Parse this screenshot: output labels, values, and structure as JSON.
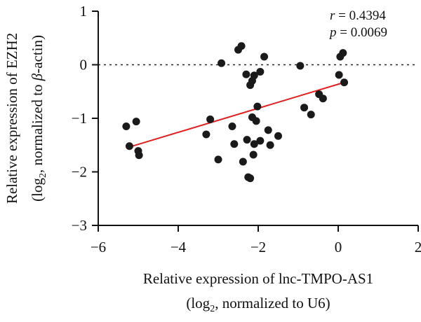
{
  "chart_data": {
    "type": "scatter",
    "title": "",
    "xlabel_line1": "Relative expression of lnc-TMPO-AS1",
    "xlabel_line2_pre": "(log",
    "xlabel_line2_sub": "2",
    "xlabel_line2_post": ", normalized to U6)",
    "ylabel_line1": "Relative expression of EZH2",
    "ylabel_line2_pre": "(log",
    "ylabel_line2_sub": "2",
    "ylabel_line2_post": ", normalized to ",
    "ylabel_line2_greek": "β",
    "ylabel_line2_end": "-actin)",
    "xlim": [
      -6,
      2
    ],
    "ylim": [
      -3,
      1
    ],
    "xticks": [
      -6,
      -4,
      -2,
      0,
      2
    ],
    "yticks": [
      -3,
      -2,
      -1,
      0,
      1
    ],
    "xtick_labels": [
      "−6",
      "−4",
      "−2",
      "0",
      "2"
    ],
    "ytick_labels": [
      "−3",
      "−2",
      "−1",
      "0",
      "1"
    ],
    "reference_line": {
      "y": 0,
      "style": "dotted"
    },
    "fit_line": {
      "x": [
        -5.15,
        0.15
      ],
      "y": [
        -1.52,
        -0.33
      ],
      "color": "#e02020"
    },
    "stats": {
      "r_label": "r",
      "r_value": " = 0.4394",
      "p_label": "p",
      "p_value": " = 0.0069"
    },
    "points": [
      {
        "x": -5.3,
        "y": -1.15
      },
      {
        "x": -5.22,
        "y": -1.52
      },
      {
        "x": -5.05,
        "y": -1.06
      },
      {
        "x": -5.0,
        "y": -1.61
      },
      {
        "x": -4.98,
        "y": -1.69
      },
      {
        "x": -3.3,
        "y": -1.3
      },
      {
        "x": -3.2,
        "y": -1.02
      },
      {
        "x": -3.0,
        "y": -1.77
      },
      {
        "x": -2.92,
        "y": 0.03
      },
      {
        "x": -2.65,
        "y": -1.15
      },
      {
        "x": -2.6,
        "y": -1.48
      },
      {
        "x": -2.5,
        "y": 0.28
      },
      {
        "x": -2.42,
        "y": 0.35
      },
      {
        "x": -2.38,
        "y": -1.81
      },
      {
        "x": -2.3,
        "y": -0.18
      },
      {
        "x": -2.28,
        "y": -1.4
      },
      {
        "x": -2.25,
        "y": -2.1
      },
      {
        "x": -2.2,
        "y": -2.12
      },
      {
        "x": -2.2,
        "y": -0.38
      },
      {
        "x": -2.15,
        "y": -0.3
      },
      {
        "x": -2.15,
        "y": -0.98
      },
      {
        "x": -2.12,
        "y": -1.68
      },
      {
        "x": -2.1,
        "y": -0.2
      },
      {
        "x": -2.1,
        "y": -1.48
      },
      {
        "x": -2.05,
        "y": -1.05
      },
      {
        "x": -2.02,
        "y": -0.78
      },
      {
        "x": -1.95,
        "y": -1.42
      },
      {
        "x": -1.95,
        "y": -0.13
      },
      {
        "x": -1.85,
        "y": 0.15
      },
      {
        "x": -1.75,
        "y": -1.22
      },
      {
        "x": -1.7,
        "y": -1.5
      },
      {
        "x": -1.5,
        "y": -1.33
      },
      {
        "x": -0.95,
        "y": -0.02
      },
      {
        "x": -0.85,
        "y": -0.8
      },
      {
        "x": -0.68,
        "y": -0.93
      },
      {
        "x": -0.48,
        "y": -0.55
      },
      {
        "x": -0.38,
        "y": -0.63
      },
      {
        "x": 0.02,
        "y": -0.19
      },
      {
        "x": 0.05,
        "y": 0.15
      },
      {
        "x": 0.12,
        "y": 0.22
      },
      {
        "x": 0.15,
        "y": -0.33
      }
    ]
  }
}
